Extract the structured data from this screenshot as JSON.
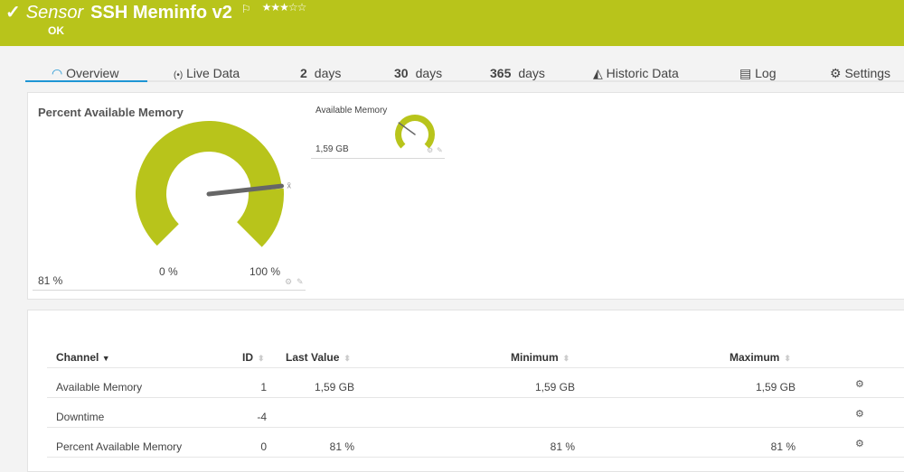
{
  "header": {
    "check_icon": "check-icon",
    "prefix": "Sensor",
    "title": "SSH Meminfo v2",
    "flag_icon": "flag-icon",
    "priority_stars": 3,
    "priority_max": 5,
    "status": "OK",
    "color": "#b8c41b"
  },
  "tabs": [
    {
      "label": "Overview",
      "icon": "gauge-icon",
      "active": true
    },
    {
      "label": "Live Data",
      "icon": "broadcast-icon"
    },
    {
      "num": "2",
      "label": "days"
    },
    {
      "num": "30",
      "label": "days"
    },
    {
      "num": "365",
      "label": "days"
    },
    {
      "label": "Historic Data",
      "icon": "area-chart-icon"
    },
    {
      "label": "Log",
      "icon": "list-icon"
    },
    {
      "label": "Settings",
      "icon": "gear-icon"
    }
  ],
  "gauges": [
    {
      "title": "Percent Available Memory",
      "value": "81 %",
      "min_label": "0 %",
      "max_label": "100 %",
      "percent": 81,
      "avg_marker": "x̄"
    },
    {
      "title": "Available Memory",
      "value": "1,59 GB",
      "percent": 30
    }
  ],
  "table": {
    "columns": [
      "Channel",
      "ID",
      "Last Value",
      "Minimum",
      "Maximum"
    ],
    "rows": [
      {
        "channel": "Available Memory",
        "id": "1",
        "last": "1,59 GB",
        "min": "1,59 GB",
        "max": "1,59 GB"
      },
      {
        "channel": "Downtime",
        "id": "-4",
        "last": "",
        "min": "",
        "max": ""
      },
      {
        "channel": "Percent Available Memory",
        "id": "0",
        "last": "81 %",
        "min": "81 %",
        "max": "81 %"
      }
    ]
  }
}
